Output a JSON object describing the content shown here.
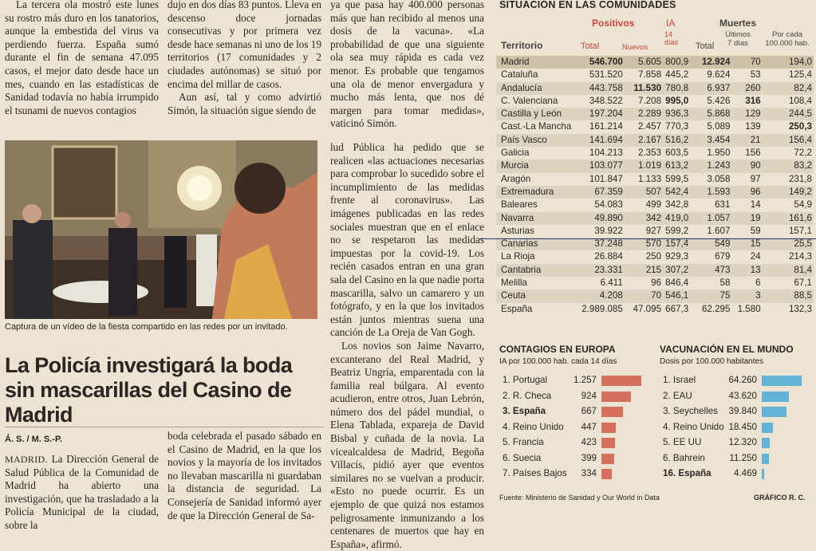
{
  "text": {
    "col1_top": "La tercera ola mostró este lunes su rostro más duro en los tanatorios, aunque la embestida del virus va perdiendo fuerza. España sumó durante el fin de semana 47.095 casos, el mejor dato desde hace un mes, cuando en las estadísticas de Sanidad todavía no había irrumpido el tsunami de nuevos contagios",
    "col2_top_a": "dujo en dos días 83 puntos. Lleva en descenso doce jornadas consecutivas y por primera vez desde hace semanas ni uno de los 19 territorios (17 comunidades y 2 ciudades autónomas) se situó por encima del millar de casos.",
    "col2_top_b": "Aun así, tal y como advirtió Simón, la situación sigue siendo de",
    "col3_top": "ya que pasa hay 400.000 personas más que han recibido al menos una dosis de la vacuna». «La probabilidad de que una siguiente ola sea muy rápida es cada vez menor. Es probable que tengamos una ola de menor envergadura y mucho más lenta, que nos dé margen para tomar medidas», vaticinó Simón.",
    "col3_mid_a": "lud Pública ha pedido que se realicen «las actuaciones necesarias para comprobar lo sucedido sobre el incumplimiento de las medidas frente al coronavirus». Las imágenes publicadas en las redes sociales muestran que en el enlace no se respetaron las medidas impuestas por la covid-19. Los recién casados entran en una gran sala del Casino en la que nadie porta mascarilla, salvo un camarero y un fotógrafo, y en la que los invitados están juntos mientras suena una canción de La Oreja de Van Gogh.",
    "col3_mid_b": "Los novios son Jaime Navarro, excanterano del Real Madrid, y Beatriz Ungría, emparentada con la familia real búlgara. Al evento acudieron, entre otros, Juan Lebrón, número dos del pádel mundial, o Elena Tablada, expareja de David Bisbal y cuñada de la novia. La vicealcaldesa de Madrid, Begoña Villacís, pidió ayer que eventos similares no se vuelvan a producir. «Esto no puede ocurrir. Es un ejemplo de que quizá nos estamos peligrosamente inmunizando a los centenares de muertos que hay en España», afirmó.",
    "caption": "Captura de un vídeo de la fiesta compartido en las redes por un invitado.",
    "headline": "La Policía investigará la boda sin mascarillas del Casino de Madrid",
    "byline": "Á. S. / M. S.-P.",
    "col1_bot_lead": "MADRID.",
    "col1_bot": " La Dirección General de Salud Pública de la Comunidad de Madrid ha abierto una investigación, que ha trasladado a la Policía Municipal de la ciudad, sobre la",
    "col2_bot": "boda celebrada el pasado sábado en el Casino de Madrid, en la que los novios y la mayoría de los invitados no llevaban mascarilla ni guardaban la distancia de seguridad. La Consejería de Sanidad informó ayer de que la Dirección General de Sa-"
  },
  "table": {
    "title": "SITUACIÓN EN LAS COMUNIDADES",
    "group_positivos": "Positivos",
    "group_ia": "IA",
    "group_muertes": "Muertes",
    "col_territorio": "Territorio",
    "col_total": "Total",
    "col_nuevos": "Nuevos",
    "col_ia_sub": "14 días",
    "col_total2": "Total",
    "col_ultimos": "Últimos 7 días",
    "col_porcada": "Por cada 100.000 hab.",
    "rows": [
      [
        "Madrid",
        "546.700",
        "5.605",
        "800,9",
        "12.924",
        "70",
        "194,0"
      ],
      [
        "Cataluña",
        "531.520",
        "7.858",
        "445,2",
        "9.624",
        "53",
        "125,4"
      ],
      [
        "Andalucía",
        "443.758",
        "11.530",
        "780,8",
        "6.937",
        "260",
        "82,4"
      ],
      [
        "C. Valenciana",
        "348.522",
        "7.208",
        "995,0",
        "5.426",
        "316",
        "108,4"
      ],
      [
        "Castilla y León",
        "197.204",
        "2.289",
        "936,3",
        "5.868",
        "129",
        "244,5"
      ],
      [
        "Cast.-La Mancha",
        "161.214",
        "2.457",
        "770,3",
        "5.089",
        "139",
        "250,3"
      ],
      [
        "País Vasco",
        "141.694",
        "2.167",
        "516,2",
        "3.454",
        "21",
        "156,4"
      ],
      [
        "Galicia",
        "104.213",
        "2.353",
        "603,5",
        "1.950",
        "156",
        "72,2"
      ],
      [
        "Murcia",
        "103.077",
        "1.019",
        "613,2",
        "1.243",
        "90",
        "83,2"
      ],
      [
        "Aragón",
        "101.847",
        "1.133",
        "599,5",
        "3.058",
        "97",
        "231,8"
      ],
      [
        "Extremadura",
        "67.359",
        "507",
        "542,4",
        "1.593",
        "96",
        "149,2"
      ],
      [
        "Baleares",
        "54.083",
        "499",
        "342,8",
        "631",
        "14",
        "54,9"
      ],
      [
        "Navarra",
        "49.890",
        "342",
        "419,0",
        "1.057",
        "19",
        "161,6"
      ],
      [
        "Asturias",
        "39.922",
        "927",
        "599,2",
        "1.607",
        "59",
        "157,1"
      ],
      [
        "Canarias",
        "37.248",
        "570",
        "157,4",
        "549",
        "15",
        "25,5"
      ],
      [
        "La Rioja",
        "26.884",
        "250",
        "929,3",
        "679",
        "24",
        "214,3"
      ],
      [
        "Cantabria",
        "23.331",
        "215",
        "307,2",
        "473",
        "13",
        "81,4"
      ],
      [
        "Melilla",
        "6.411",
        "96",
        "846,4",
        "58",
        "6",
        "67,1"
      ],
      [
        "Ceuta",
        "4.208",
        "70",
        "546,1",
        "75",
        "3",
        "88,5"
      ],
      [
        "España",
        "2.989.085",
        "47.095",
        "667,3",
        "62.295",
        "1.580",
        "132,3"
      ]
    ]
  },
  "europa": {
    "title": "CONTAGIOS EN EUROPA",
    "subtitle": "IA por 100.000 hab. cada 14 días",
    "color": "#d4705e",
    "items": [
      {
        "label": "1. Portugal",
        "value": "1.257",
        "v": 1257
      },
      {
        "label": "2. R. Checa",
        "value": "924",
        "v": 924
      },
      {
        "label": "3. España",
        "value": "667",
        "v": 667
      },
      {
        "label": "4. Reino Unido",
        "value": "447",
        "v": 447
      },
      {
        "label": "5. Francia",
        "value": "423",
        "v": 423
      },
      {
        "label": "6. Suecia",
        "value": "399",
        "v": 399
      },
      {
        "label": "7. Países Bajos",
        "value": "334",
        "v": 334
      }
    ]
  },
  "vacunacion": {
    "title": "VACUNACIÓN EN EL MUNDO",
    "subtitle": "Dosis por 100.000 habitantes",
    "color": "#62b3d6",
    "items": [
      {
        "label": "1. Israel",
        "value": "64.260",
        "v": 64260
      },
      {
        "label": "2. EAU",
        "value": "43.620",
        "v": 43620
      },
      {
        "label": "3. Seychelles",
        "value": "39.840",
        "v": 39840
      },
      {
        "label": "4. Reino Unido",
        "value": "18.450",
        "v": 18450
      },
      {
        "label": "5. EE UU",
        "value": "12.320",
        "v": 12320
      },
      {
        "label": "6. Bahrein",
        "value": "11.250",
        "v": 11250
      },
      {
        "label": "16. España",
        "value": "4.469",
        "v": 4469
      }
    ]
  },
  "footer": {
    "source": "Fuente: Ministerio de Sanidad y Our World in Data",
    "credit": "GRÁFICO R. C."
  }
}
